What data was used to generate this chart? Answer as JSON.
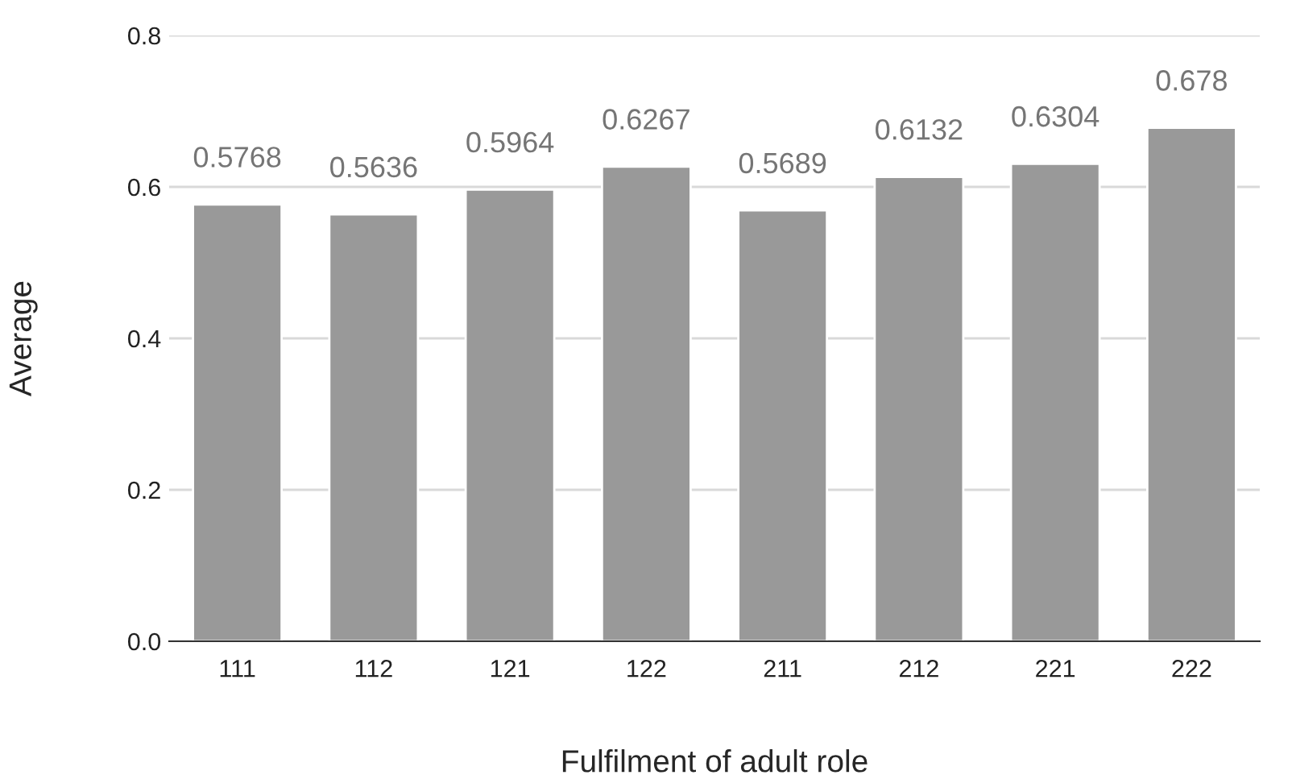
{
  "chart_data": {
    "type": "bar",
    "xlabel": "Fulfilment of adult role",
    "ylabel": "Average",
    "categories": [
      "111",
      "112",
      "121",
      "122",
      "211",
      "212",
      "221",
      "222"
    ],
    "values": [
      0.5768,
      0.5636,
      0.5964,
      0.6267,
      0.5689,
      0.6132,
      0.6304,
      0.678
    ],
    "color": "#999999",
    "ylim": [
      0,
      0.8
    ],
    "yticks": [
      {
        "value": 0,
        "label": "0.0"
      },
      {
        "value": 0.2,
        "label": "0.2"
      },
      {
        "value": 0.4,
        "label": "0.4"
      },
      {
        "value": 0.6,
        "label": "0.6"
      },
      {
        "value": 0.8,
        "label": "0.8"
      }
    ],
    "grid": "y",
    "data_labels": true
  }
}
